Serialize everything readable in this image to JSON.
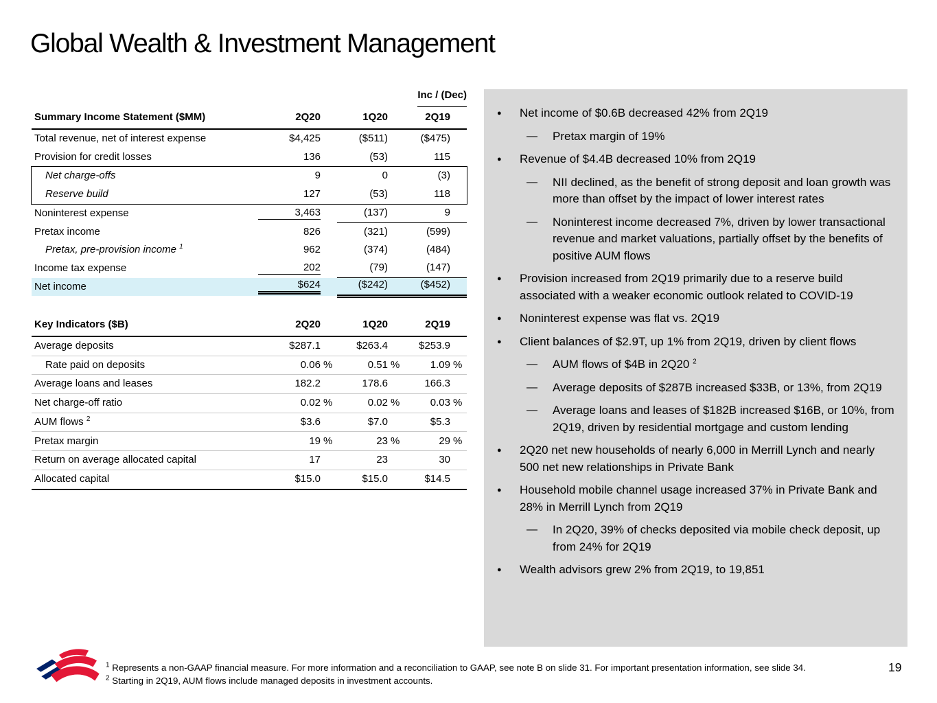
{
  "title": "Global Wealth & Investment Management",
  "page_number": "19",
  "colors": {
    "panel_bg": "#d9d9d9",
    "highlight_bg": "#d7f0f7",
    "logo_red": "#e31837",
    "logo_blue": "#012169"
  },
  "income_statement": {
    "header_label": "Summary Income Statement ($MM)",
    "span_header": "Inc / (Dec)",
    "columns": [
      "2Q20",
      "1Q20",
      "2Q19"
    ],
    "rows": [
      {
        "label": "Total revenue, net of interest expense",
        "values": [
          "$4,425",
          "($511)",
          "($475)"
        ]
      },
      {
        "label": "Provision for credit losses",
        "values": [
          "136",
          "(53)",
          "115"
        ]
      },
      {
        "label": "Net charge-offs",
        "italic": true,
        "indent": true,
        "boxed": true,
        "values": [
          "9",
          "0",
          "(3)"
        ]
      },
      {
        "label": "Reserve build",
        "italic": true,
        "indent": true,
        "boxed": true,
        "values": [
          "127",
          "(53)",
          "118"
        ]
      },
      {
        "label": "Noninterest expense",
        "underline": true,
        "values": [
          "3,463",
          "(137)",
          "9"
        ]
      },
      {
        "label": "Pretax income",
        "values": [
          "826",
          "(321)",
          "(599)"
        ]
      },
      {
        "label": "Pretax, pre-provision income",
        "sup": "1",
        "italic": true,
        "indent": true,
        "values": [
          "962",
          "(374)",
          "(484)"
        ]
      },
      {
        "label": "Income tax expense",
        "underline": true,
        "values": [
          "202",
          "(79)",
          "(147)"
        ]
      },
      {
        "label": "Net income",
        "highlight": true,
        "double_underline": true,
        "values": [
          "$624",
          "($242)",
          "($452)"
        ]
      }
    ]
  },
  "key_indicators": {
    "header_label": "Key Indicators ($B)",
    "columns": [
      "2Q20",
      "1Q20",
      "2Q19"
    ],
    "rows": [
      {
        "label": "Average deposits",
        "values": [
          "$287.1",
          "",
          "$263.4",
          "",
          "$253.9",
          ""
        ]
      },
      {
        "label": "Rate paid on deposits",
        "indent": true,
        "values": [
          "0.06",
          "%",
          "0.51",
          "%",
          "1.09",
          "%"
        ]
      },
      {
        "label": "Average loans and leases",
        "values": [
          "182.2",
          "",
          "178.6",
          "",
          "166.3",
          ""
        ]
      },
      {
        "label": "Net charge-off ratio",
        "values": [
          "0.02",
          "%",
          "0.02",
          "%",
          "0.03",
          "%"
        ]
      },
      {
        "label": "AUM flows",
        "sup": "2",
        "values": [
          "$3.6",
          "",
          "$7.0",
          "",
          "$5.3",
          ""
        ]
      },
      {
        "label": "Pretax margin",
        "values": [
          "19",
          "%",
          "23",
          "%",
          "29",
          "%"
        ]
      },
      {
        "label": "Return on average allocated capital",
        "values": [
          "17",
          "",
          "23",
          "",
          "30",
          ""
        ]
      },
      {
        "label": "Allocated capital",
        "values": [
          "$15.0",
          "",
          "$15.0",
          "",
          "$14.5",
          ""
        ]
      }
    ]
  },
  "highlights": [
    {
      "level": 1,
      "text": "Net income of $0.6B decreased 42% from 2Q19"
    },
    {
      "level": 2,
      "text": "Pretax margin of 19%"
    },
    {
      "level": 1,
      "text": "Revenue of $4.4B decreased 10% from 2Q19"
    },
    {
      "level": 2,
      "text": "NII declined, as the benefit of strong deposit and loan growth was more than offset by the impact of lower interest rates"
    },
    {
      "level": 2,
      "text": "Noninterest income decreased 7%, driven by lower transactional revenue and market valuations, partially offset by the benefits of positive AUM flows"
    },
    {
      "level": 1,
      "text": "Provision increased from 2Q19 primarily due to a reserve build associated with a weaker economic outlook related to COVID-19"
    },
    {
      "level": 1,
      "text": "Noninterest expense was flat vs. 2Q19"
    },
    {
      "level": 1,
      "text": "Client balances of $2.9T, up 1% from 2Q19, driven by client flows"
    },
    {
      "level": 2,
      "text": "AUM flows of $4B in 2Q20",
      "sup": "2"
    },
    {
      "level": 2,
      "text": "Average deposits of $287B increased $33B, or 13%, from 2Q19"
    },
    {
      "level": 2,
      "text": "Average loans and leases of $182B increased $16B, or 10%, from 2Q19, driven by residential mortgage and custom lending"
    },
    {
      "level": 1,
      "text": "2Q20 net new households of nearly 6,000 in Merrill Lynch and nearly 500 net new relationships in Private Bank"
    },
    {
      "level": 1,
      "text": "Household mobile channel usage increased 37% in Private Bank and 28% in Merrill Lynch from 2Q19"
    },
    {
      "level": 2,
      "text": "In 2Q20, 39% of checks deposited via mobile check deposit, up from 24% for 2Q19"
    },
    {
      "level": 1,
      "text": "Wealth advisors grew 2% from 2Q19, to 19,851"
    }
  ],
  "footnotes": [
    {
      "sup": "1",
      "text": "Represents a non-GAAP financial measure. For more information and a reconciliation to GAAP, see note B on slide 31. For important presentation information, see slide 34."
    },
    {
      "sup": "2",
      "text": "Starting in 2Q19, AUM flows include managed deposits in investment accounts."
    }
  ],
  "logo": "bank-of-america-flagscape-logo"
}
